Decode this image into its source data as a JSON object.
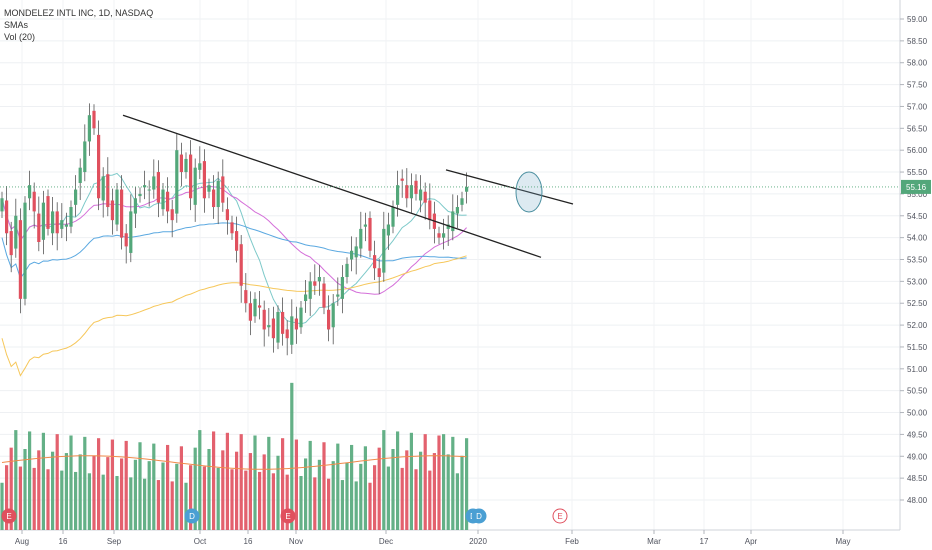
{
  "legend": {
    "symbol": "MONDELEZ INTL INC, 1D, NASDAQ",
    "smas": "SMAs",
    "vol": "Vol (20)"
  },
  "colors": {
    "up": "#53a77a",
    "down": "#e0505e",
    "sma_fast": "#7dc9c9",
    "sma_mid": "#d46fd9",
    "sma_slow": "#5aa8e0",
    "sma_long": "#f6c75a",
    "trendline": "#222222",
    "last_price": "#53a77a",
    "earnings_marker": "#e0505e",
    "dividend_marker": "#4a9fd3"
  },
  "chart_data": {
    "type": "candlestick",
    "title": "MONDELEZ INTL INC, 1D, NASDAQ",
    "y_axis": {
      "ticks": [
        "59.00",
        "58.50",
        "58.00",
        "57.50",
        "57.00",
        "56.50",
        "56.00",
        "55.50",
        "55.00",
        "54.50",
        "54.00",
        "53.50",
        "53.00",
        "52.50",
        "52.00",
        "51.50",
        "51.00",
        "50.50",
        "50.00",
        "49.50",
        "49.00",
        "48.50",
        "48.00"
      ],
      "ylim": [
        47.8,
        59.2
      ]
    },
    "x_axis": {
      "labels": [
        "Aug",
        "16",
        "Sep",
        "Oct",
        "16",
        "Nov",
        "Dec",
        "2020",
        "Feb",
        "Mar",
        "17",
        "Apr",
        "May"
      ]
    },
    "last_price": "55.16",
    "candles_close": [
      54.9,
      54.1,
      53.6,
      54.5,
      52.6,
      54.8,
      55.2,
      54.6,
      53.9,
      54.8,
      54.2,
      54.6,
      54.1,
      54.4,
      54.3,
      54.7,
      55.1,
      55.6,
      56.2,
      56.8,
      56.5,
      54.9,
      55.4,
      54.7,
      54.4,
      55.1,
      54.0,
      53.8,
      54.6,
      54.9,
      55.0,
      55.2,
      55.1,
      55.4,
      54.8,
      55.1,
      54.6,
      54.4,
      56.0,
      55.5,
      55.8,
      54.9,
      55.6,
      55.7,
      54.9,
      55.2,
      54.7,
      55.3,
      54.8,
      54.4,
      54.1,
      53.7,
      52.9,
      52.5,
      52.1,
      52.6,
      52.4,
      51.9,
      52.0,
      51.7,
      52.3,
      51.8,
      51.7,
      52.2,
      51.9,
      52.4,
      52.7,
      53.0,
      52.9,
      53.1,
      52.4,
      51.9,
      52.5,
      52.7,
      53.1,
      53.4,
      53.7,
      53.8,
      54.2,
      54.3,
      53.7,
      53.3,
      53.1,
      54.2,
      54.3,
      54.7,
      55.2,
      55.3,
      54.9,
      55.2,
      55.0,
      55.1,
      54.8,
      54.4,
      54.2,
      54.0,
      54.1,
      54.3,
      54.6,
      54.7,
      54.9,
      55.16
    ],
    "volume": {
      "ylim": [
        0,
        100
      ]
    },
    "sma_series": [
      {
        "name": "SMA fast"
      },
      {
        "name": "SMA mid"
      },
      {
        "name": "SMA slow"
      },
      {
        "name": "SMA long"
      }
    ],
    "trendlines": [
      {
        "from": [
          "day 23",
          56.8
        ],
        "to": [
          "day 108",
          53.55
        ]
      },
      {
        "from": [
          "day 88",
          55.55
        ],
        "to": [
          "day 113",
          54.77
        ]
      }
    ],
    "events": [
      {
        "type": "E",
        "label": "E"
      },
      {
        "type": "D",
        "label": "D"
      },
      {
        "type": "E",
        "label": "E"
      },
      {
        "type": "D",
        "label": "D"
      },
      {
        "type": "D",
        "label": "D"
      },
      {
        "type": "E",
        "label": "E"
      }
    ]
  }
}
